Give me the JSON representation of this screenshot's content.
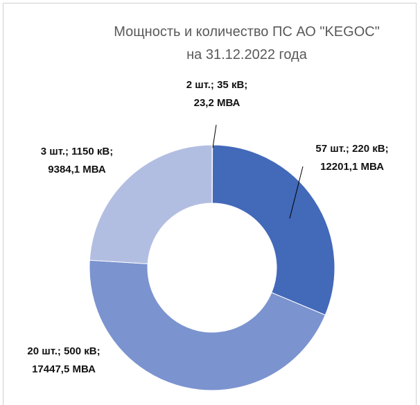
{
  "chart_data": {
    "type": "donut",
    "title": [
      "Мощность и количество ПС АО \"KEGOC\"",
      "на 31.12.2022 года"
    ],
    "values": [
      23.2,
      12201.1,
      17447.5,
      9384.1
    ],
    "value_labels": [
      "2 шт.; 35 кВ; 23,2 МВА",
      "57 шт.; 220 кВ; 12201,1 МВА",
      "20 шт.; 500 кВ; 17447,5 МВА",
      "3 шт.; 1150 кВ; 9384,1 МВА"
    ],
    "colors": [
      "#3a5ea8",
      "#4369b9",
      "#7b93cf",
      "#b2bee1"
    ]
  }
}
